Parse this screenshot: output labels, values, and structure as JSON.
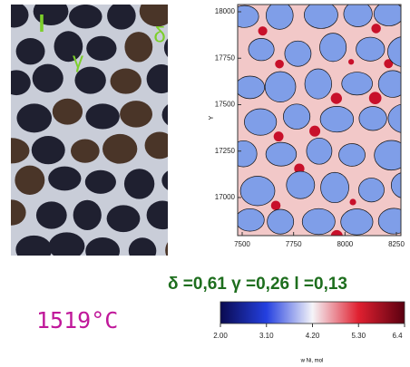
{
  "micrograph": {
    "labels": [
      "l",
      "γ",
      "δ"
    ]
  },
  "simulation": {
    "y_label": "Y",
    "xlim": [
      7478,
      8272
    ],
    "xticks": [
      7500,
      7750,
      8000,
      8250
    ],
    "ylim": [
      16795,
      18039
    ],
    "yticks": [
      17000,
      17250,
      17500,
      17750,
      18000
    ]
  },
  "phase_fractions": "δ =0,61 γ =0,26 l =0,13",
  "temperature": "1519°C",
  "colorbar": {
    "lim": [
      2.0,
      6.4
    ],
    "ticks": [
      {
        "value": 2.0,
        "label": "2.00"
      },
      {
        "value": 3.1,
        "label": "3.10"
      },
      {
        "value": 4.2,
        "label": "4.20"
      },
      {
        "value": 5.3,
        "label": "5.30"
      },
      {
        "value": 6.4,
        "label": "6.4"
      }
    ],
    "label": "w Ni, mol"
  }
}
